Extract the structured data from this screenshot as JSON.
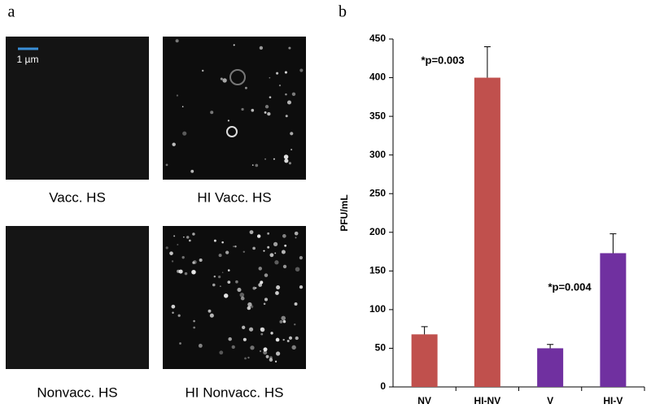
{
  "panel_labels": [
    "a",
    "b"
  ],
  "images": [
    {
      "caption": "Vacc. HS",
      "scale_bar": "1 µm"
    },
    {
      "caption": "HI Vacc. HS"
    },
    {
      "caption": "Nonvacc. HS"
    },
    {
      "caption": "HI Nonvacc. HS"
    }
  ],
  "chart_data": {
    "type": "bar",
    "ylabel": "PFU/mL",
    "categories": [
      "NV",
      "HI-NV",
      "V",
      "HI-V"
    ],
    "values": [
      68,
      400,
      50,
      173
    ],
    "errors": [
      10,
      40,
      5,
      25
    ],
    "colors": [
      "#c0504d",
      "#c0504d",
      "#7030a0",
      "#7030a0"
    ],
    "ylim": [
      0,
      450
    ],
    "yticks": [
      0,
      50,
      100,
      150,
      200,
      250,
      300,
      350,
      400,
      450
    ],
    "annotations": [
      "*p=0.003",
      "*p=0.004"
    ]
  }
}
